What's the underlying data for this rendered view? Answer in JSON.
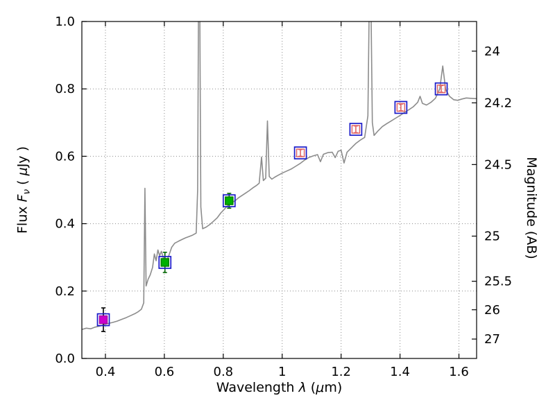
{
  "figure": {
    "background": "#ffffff",
    "border_color": "#000000",
    "grid_color": "#8a8a8a",
    "grid_style": "dotted"
  },
  "chart_data": {
    "type": "line",
    "title": "",
    "xlabel": "Wavelength λ (μm)",
    "xlabel_parts": [
      {
        "t": "Wavelength  "
      },
      {
        "t": "λ",
        "i": 1
      },
      {
        "t": " ("
      },
      {
        "t": "μ",
        "i": 1
      },
      {
        "t": "m)"
      }
    ],
    "ylabel_left": "Flux Fν ( μJy )",
    "ylabel_left_parts": [
      {
        "t": "Flux  "
      },
      {
        "t": "F",
        "i": 1
      },
      {
        "t": "ν",
        "i": 1,
        "s": 1
      },
      {
        "t": "  ( "
      },
      {
        "t": "μ",
        "i": 1
      },
      {
        "t": "Jy )"
      }
    ],
    "ylabel_right": "Magnitude (AB)",
    "ylabel_right_parts": [
      {
        "t": "Magnitude (AB)"
      }
    ],
    "xlim": [
      0.32,
      1.66
    ],
    "ylim": [
      0.0,
      1.0
    ],
    "x_ticks": [
      0.4,
      0.6,
      0.8,
      1.0,
      1.2,
      1.4,
      1.6
    ],
    "x_tick_labels": [
      "0.4",
      "0.6",
      "0.8",
      "1",
      "1.2",
      "1.4",
      "1.6"
    ],
    "y_ticks_left": [
      0.0,
      0.2,
      0.4,
      0.6,
      0.8,
      1.0
    ],
    "y_tick_labels_left": [
      "0.0",
      "0.2",
      "0.4",
      "0.6",
      "0.8",
      "1.0"
    ],
    "y_ticks_right_mag": [
      24,
      24.2,
      24.5,
      25,
      25.5,
      26,
      27
    ],
    "y_tick_labels_right": [
      "24",
      "24.2",
      "24.5",
      "25",
      "25.5",
      "26",
      "27"
    ],
    "mag_zeropoint": 23.9,
    "grid": "dotted",
    "spectrum_color": "#8c8c8c",
    "spectrum": [
      [
        0.32,
        0.086
      ],
      [
        0.335,
        0.09
      ],
      [
        0.35,
        0.088
      ],
      [
        0.365,
        0.093
      ],
      [
        0.38,
        0.096
      ],
      [
        0.395,
        0.1
      ],
      [
        0.41,
        0.104
      ],
      [
        0.425,
        0.107
      ],
      [
        0.44,
        0.111
      ],
      [
        0.455,
        0.116
      ],
      [
        0.47,
        0.121
      ],
      [
        0.485,
        0.127
      ],
      [
        0.5,
        0.133
      ],
      [
        0.512,
        0.139
      ],
      [
        0.522,
        0.146
      ],
      [
        0.53,
        0.165
      ],
      [
        0.534,
        0.505
      ],
      [
        0.538,
        0.215
      ],
      [
        0.545,
        0.235
      ],
      [
        0.552,
        0.248
      ],
      [
        0.56,
        0.27
      ],
      [
        0.566,
        0.31
      ],
      [
        0.572,
        0.29
      ],
      [
        0.578,
        0.322
      ],
      [
        0.584,
        0.305
      ],
      [
        0.59,
        0.318
      ],
      [
        0.596,
        0.3
      ],
      [
        0.602,
        0.272
      ],
      [
        0.608,
        0.29
      ],
      [
        0.615,
        0.305
      ],
      [
        0.625,
        0.33
      ],
      [
        0.635,
        0.342
      ],
      [
        0.648,
        0.348
      ],
      [
        0.66,
        0.353
      ],
      [
        0.672,
        0.358
      ],
      [
        0.684,
        0.362
      ],
      [
        0.696,
        0.366
      ],
      [
        0.708,
        0.372
      ],
      [
        0.713,
        0.5
      ],
      [
        0.716,
        1.08
      ],
      [
        0.72,
        1.08
      ],
      [
        0.724,
        0.45
      ],
      [
        0.73,
        0.385
      ],
      [
        0.742,
        0.39
      ],
      [
        0.755,
        0.398
      ],
      [
        0.768,
        0.408
      ],
      [
        0.78,
        0.418
      ],
      [
        0.792,
        0.432
      ],
      [
        0.804,
        0.443
      ],
      [
        0.816,
        0.455
      ],
      [
        0.828,
        0.462
      ],
      [
        0.84,
        0.468
      ],
      [
        0.852,
        0.477
      ],
      [
        0.864,
        0.484
      ],
      [
        0.876,
        0.491
      ],
      [
        0.888,
        0.498
      ],
      [
        0.9,
        0.506
      ],
      [
        0.912,
        0.513
      ],
      [
        0.922,
        0.52
      ],
      [
        0.93,
        0.598
      ],
      [
        0.936,
        0.528
      ],
      [
        0.944,
        0.535
      ],
      [
        0.95,
        0.705
      ],
      [
        0.956,
        0.54
      ],
      [
        0.965,
        0.532
      ],
      [
        0.975,
        0.538
      ],
      [
        0.985,
        0.543
      ],
      [
        1.0,
        0.55
      ],
      [
        1.015,
        0.556
      ],
      [
        1.03,
        0.562
      ],
      [
        1.045,
        0.57
      ],
      [
        1.06,
        0.578
      ],
      [
        1.075,
        0.588
      ],
      [
        1.09,
        0.596
      ],
      [
        1.105,
        0.601
      ],
      [
        1.12,
        0.605
      ],
      [
        1.13,
        0.584
      ],
      [
        1.14,
        0.606
      ],
      [
        1.155,
        0.611
      ],
      [
        1.17,
        0.612
      ],
      [
        1.18,
        0.596
      ],
      [
        1.19,
        0.615
      ],
      [
        1.2,
        0.618
      ],
      [
        1.21,
        0.58
      ],
      [
        1.22,
        0.612
      ],
      [
        1.235,
        0.625
      ],
      [
        1.25,
        0.638
      ],
      [
        1.265,
        0.648
      ],
      [
        1.28,
        0.656
      ],
      [
        1.291,
        0.72
      ],
      [
        1.296,
        1.08
      ],
      [
        1.301,
        1.08
      ],
      [
        1.306,
        0.7
      ],
      [
        1.312,
        0.662
      ],
      [
        1.325,
        0.675
      ],
      [
        1.34,
        0.688
      ],
      [
        1.355,
        0.697
      ],
      [
        1.37,
        0.705
      ],
      [
        1.385,
        0.713
      ],
      [
        1.4,
        0.721
      ],
      [
        1.415,
        0.73
      ],
      [
        1.43,
        0.738
      ],
      [
        1.445,
        0.747
      ],
      [
        1.46,
        0.76
      ],
      [
        1.468,
        0.778
      ],
      [
        1.476,
        0.757
      ],
      [
        1.49,
        0.752
      ],
      [
        1.505,
        0.76
      ],
      [
        1.52,
        0.772
      ],
      [
        1.535,
        0.8
      ],
      [
        1.545,
        0.868
      ],
      [
        1.555,
        0.798
      ],
      [
        1.568,
        0.778
      ],
      [
        1.582,
        0.768
      ],
      [
        1.596,
        0.766
      ],
      [
        1.61,
        0.77
      ],
      [
        1.625,
        0.773
      ],
      [
        1.64,
        0.772
      ],
      [
        1.66,
        0.771
      ]
    ],
    "model_squares": {
      "edge_color": "#1a1ac8",
      "points": [
        [
          0.393,
          0.115
        ],
        [
          0.602,
          0.285
        ],
        [
          0.82,
          0.468
        ],
        [
          1.062,
          0.61
        ],
        [
          1.25,
          0.68
        ],
        [
          1.403,
          0.745
        ],
        [
          1.54,
          0.8
        ]
      ]
    },
    "observed_points": [
      {
        "x": 0.393,
        "y": 0.115,
        "fill": "#cc00cc",
        "edge": "#aa00aa",
        "err": 0.035,
        "err_color": "#000000"
      },
      {
        "x": 0.602,
        "y": 0.285,
        "fill": "#00b000",
        "edge": "#008000",
        "err": 0.03,
        "err_color": "#006600"
      },
      {
        "x": 0.82,
        "y": 0.468,
        "fill": "#00b000",
        "edge": "#008000",
        "err": 0.022,
        "err_color": "#006600"
      },
      {
        "x": 1.062,
        "y": 0.61,
        "fill": "none",
        "edge": "#e06666",
        "err": 0.01,
        "err_color": "#e06666"
      },
      {
        "x": 1.25,
        "y": 0.68,
        "fill": "none",
        "edge": "#e06666",
        "err": 0.01,
        "err_color": "#e06666"
      },
      {
        "x": 1.403,
        "y": 0.745,
        "fill": "none",
        "edge": "#e06666",
        "err": 0.01,
        "err_color": "#e06666"
      },
      {
        "x": 1.54,
        "y": 0.8,
        "fill": "none",
        "edge": "#e06666",
        "err": 0.01,
        "err_color": "#e06666"
      }
    ]
  }
}
